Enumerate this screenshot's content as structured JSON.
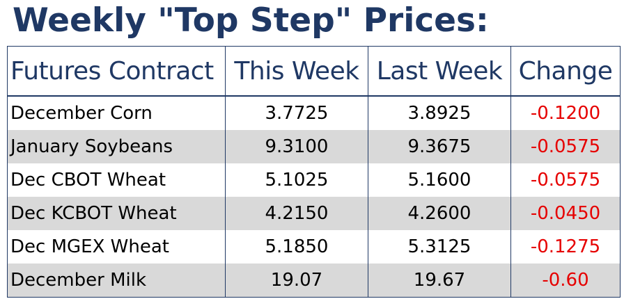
{
  "title": "Weekly \"Top Step\" Prices:",
  "colors": {
    "heading": "#1f3864",
    "negative": "#e60000",
    "stripe": "#d9d9d9"
  },
  "table": {
    "headers": [
      "Futures Contract",
      "This Week",
      "Last Week",
      "Change"
    ],
    "rows": [
      {
        "contract": "December Corn",
        "this_week": "3.7725",
        "last_week": "3.8925",
        "change": "-0.1200"
      },
      {
        "contract": "January Soybeans",
        "this_week": "9.3100",
        "last_week": "9.3675",
        "change": "-0.0575"
      },
      {
        "contract": "Dec CBOT Wheat",
        "this_week": "5.1025",
        "last_week": "5.1600",
        "change": "-0.0575"
      },
      {
        "contract": "Dec KCBOT Wheat",
        "this_week": "4.2150",
        "last_week": "4.2600",
        "change": "-0.0450"
      },
      {
        "contract": "Dec MGEX Wheat",
        "this_week": "5.1850",
        "last_week": "5.3125",
        "change": "-0.1275"
      },
      {
        "contract": "December Milk",
        "this_week": "19.07",
        "last_week": "19.67",
        "change": "-0.60"
      }
    ]
  }
}
